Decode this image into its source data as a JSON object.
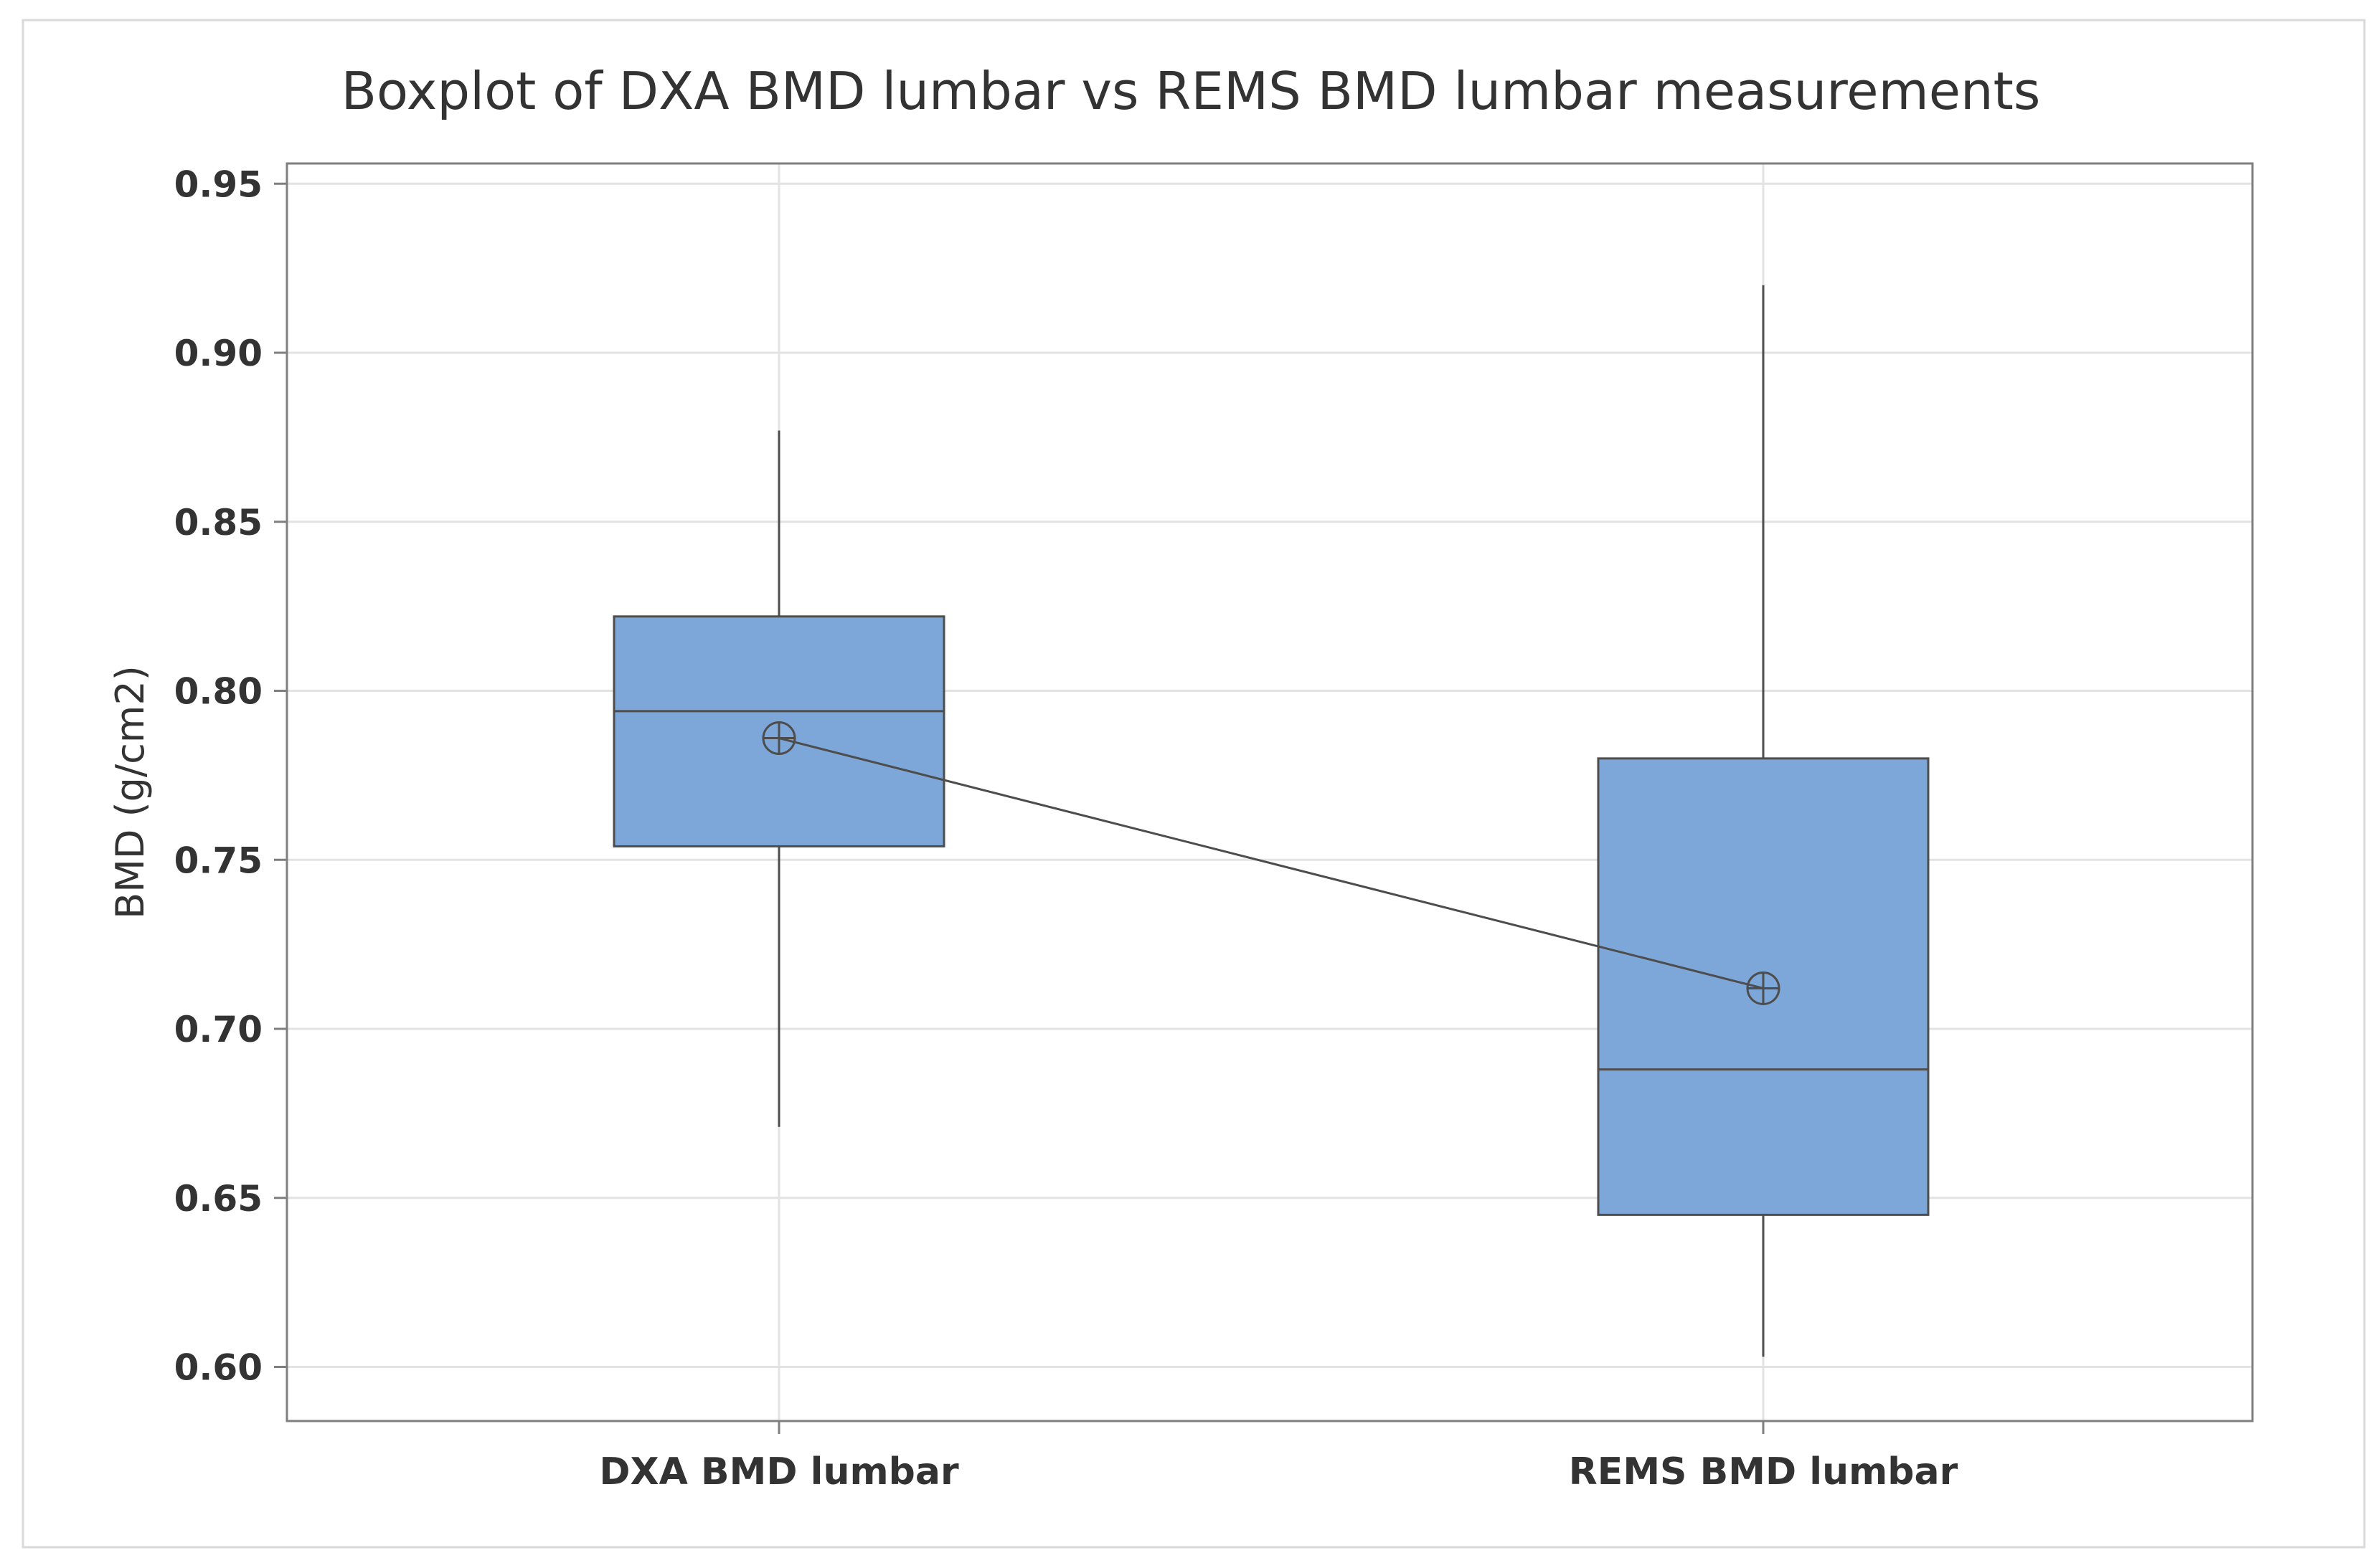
{
  "chart_data": {
    "type": "box",
    "title": "Boxplot of DXA BMD lumbar vs REMS BMD lumbar measurements",
    "xlabel": "",
    "ylabel": "BMD (g/cm2)",
    "ylim": [
      0.584,
      0.956
    ],
    "yticks": [
      0.6,
      0.65,
      0.7,
      0.75,
      0.8,
      0.85,
      0.9,
      0.95
    ],
    "ytick_labels": [
      "0.60",
      "0.65",
      "0.70",
      "0.75",
      "0.80",
      "0.85",
      "0.90",
      "0.95"
    ],
    "grid": true,
    "mean_connect_line": true,
    "categories": [
      "DXA BMD lumbar",
      "REMS BMD lumbar"
    ],
    "boxes": [
      {
        "name": "DXA BMD lumbar",
        "min": 0.671,
        "q1": 0.754,
        "median": 0.794,
        "q3": 0.822,
        "max": 0.877,
        "mean": 0.786
      },
      {
        "name": "REMS BMD lumbar",
        "min": 0.603,
        "q1": 0.645,
        "median": 0.688,
        "q3": 0.78,
        "max": 0.92,
        "mean": 0.712
      }
    ],
    "colors": {
      "box_fill": "#7da7d9",
      "box_edge": "#4d4d4d",
      "grid": "#e3e3e3",
      "axis": "#7f7f7f",
      "text": "#333333",
      "frame": "#d9d9d9"
    }
  }
}
